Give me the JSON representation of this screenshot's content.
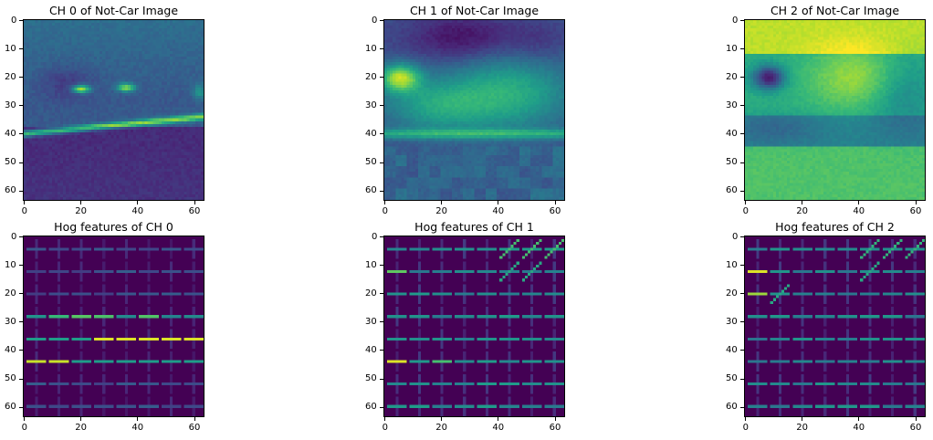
{
  "figure": {
    "panels": [
      {
        "id": "ch0-image",
        "title": "CH 0 of Not-Car Image",
        "kind": "image",
        "channel": 0
      },
      {
        "id": "ch1-image",
        "title": "CH 1 of Not-Car Image",
        "kind": "image",
        "channel": 1
      },
      {
        "id": "ch2-image",
        "title": "CH 2 of Not-Car Image",
        "kind": "image",
        "channel": 2
      },
      {
        "id": "ch0-hog",
        "title": "Hog features of CH 0",
        "kind": "hog",
        "channel": 0
      },
      {
        "id": "ch1-hog",
        "title": "Hog features of CH 1",
        "kind": "hog",
        "channel": 1
      },
      {
        "id": "ch2-hog",
        "title": "Hog features of CH 2",
        "kind": "hog",
        "channel": 2
      }
    ],
    "axes": {
      "x_ticks": [
        "0",
        "20",
        "40",
        "60"
      ],
      "y_ticks": [
        "0",
        "10",
        "20",
        "30",
        "40",
        "50",
        "60"
      ],
      "x_range": [
        -0.5,
        63.5
      ],
      "y_range": [
        -0.5,
        63.5
      ],
      "image_size": [
        64,
        64
      ]
    },
    "colormap": "viridis",
    "colors": {
      "viridis_low": "#440154",
      "viridis_mid": "#21918c",
      "viridis_high": "#fde725"
    }
  }
}
